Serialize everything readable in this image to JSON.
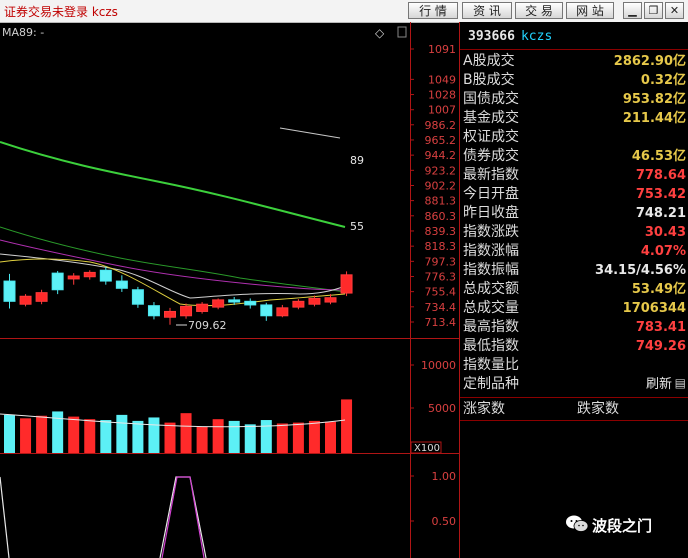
{
  "app": {
    "title": "证券交易未登录  kczs"
  },
  "toolbar": {
    "buttons": [
      "行 情",
      "资 讯",
      "交 易",
      "网 站"
    ]
  },
  "chart_labels": {
    "ma_label": "MA89: -",
    "diamond": "◇",
    "ma89_line_label": "89",
    "ma55_line_label": "55",
    "low_marker": "709.62",
    "vol_unit": "X100"
  },
  "chart_data": [
    {
      "type": "candlestick",
      "yticks": [
        "1091",
        "1049",
        "1028",
        "1007",
        "986.2",
        "965.2",
        "944.2",
        "923.2",
        "902.2",
        "881.3",
        "860.3",
        "839.3",
        "818.3",
        "797.3",
        "776.3",
        "755.4",
        "734.4",
        "713.4"
      ],
      "ylim": [
        703,
        1112
      ],
      "candles": [
        {
          "o": 770,
          "c": 742,
          "h": 780,
          "l": 732
        },
        {
          "o": 738,
          "c": 749,
          "h": 752,
          "l": 735
        },
        {
          "o": 742,
          "c": 754,
          "h": 758,
          "l": 738
        },
        {
          "o": 781,
          "c": 758,
          "h": 784,
          "l": 752
        },
        {
          "o": 773,
          "c": 777,
          "h": 781,
          "l": 765
        },
        {
          "o": 776,
          "c": 782,
          "h": 785,
          "l": 772
        },
        {
          "o": 785,
          "c": 770,
          "h": 790,
          "l": 765
        },
        {
          "o": 770,
          "c": 760,
          "h": 778,
          "l": 755
        },
        {
          "o": 758,
          "c": 738,
          "h": 762,
          "l": 733
        },
        {
          "o": 736,
          "c": 722,
          "h": 741,
          "l": 717
        },
        {
          "o": 720,
          "c": 728,
          "h": 733,
          "l": 709.62
        },
        {
          "o": 722,
          "c": 735,
          "h": 739,
          "l": 718
        },
        {
          "o": 728,
          "c": 738,
          "h": 741,
          "l": 725
        },
        {
          "o": 734,
          "c": 744,
          "h": 746,
          "l": 731
        },
        {
          "o": 744,
          "c": 741,
          "h": 748,
          "l": 737
        },
        {
          "o": 742,
          "c": 737,
          "h": 746,
          "l": 732
        },
        {
          "o": 737,
          "c": 722,
          "h": 740,
          "l": 715
        },
        {
          "o": 722,
          "c": 733,
          "h": 737,
          "l": 720
        },
        {
          "o": 734,
          "c": 742,
          "h": 745,
          "l": 731
        },
        {
          "o": 738,
          "c": 746,
          "h": 750,
          "l": 735
        },
        {
          "o": 741,
          "c": 747,
          "h": 752,
          "l": 738
        },
        {
          "o": 753.42,
          "c": 778.64,
          "h": 783.41,
          "l": 749.26
        }
      ],
      "ma_series": [
        {
          "label": "89",
          "color": "#c8c8c8",
          "points": [
            [
              0,
              1
            ],
            [
              0.6,
              1
            ],
            [
              0.66,
              936
            ],
            [
              0.75,
              924
            ]
          ]
        },
        {
          "label": "55",
          "color": "#3cd03c",
          "points": [
            [
              -0.2,
              933
            ],
            [
              0.15,
              911
            ],
            [
              0.3,
              891
            ],
            [
              0.45,
              875
            ],
            [
              0.6,
              858
            ],
            [
              0.75,
              838
            ],
            [
              0.85,
              825
            ]
          ]
        }
      ]
    },
    {
      "type": "bar",
      "series_name": "volume",
      "yticks": [
        "10000",
        "5000"
      ],
      "ylim": [
        0,
        13000
      ],
      "values": [
        4200,
        3800,
        4100,
        4600,
        4000,
        3700,
        3600,
        4200,
        3500,
        3900,
        3300,
        4400,
        2800,
        3700,
        3500,
        3100,
        3600,
        3200,
        3300,
        3500,
        3400,
        6000
      ]
    },
    {
      "type": "line",
      "yticks": [
        "1.00",
        "0.50"
      ],
      "ylim": [
        0,
        1.1
      ]
    }
  ],
  "panel": {
    "code": "393666",
    "name": "kczs",
    "rows": [
      {
        "label": "A股成交",
        "value": "2862.90亿",
        "color": "#e6c84a"
      },
      {
        "label": "B股成交",
        "value": "0.32亿",
        "color": "#e6c84a"
      },
      {
        "label": "国债成交",
        "value": "953.82亿",
        "color": "#e6c84a"
      },
      {
        "label": "基金成交",
        "value": "211.44亿",
        "color": "#e6c84a"
      },
      {
        "label": "权证成交",
        "value": "",
        "color": "#e6c84a"
      },
      {
        "label": "债券成交",
        "value": "46.53亿",
        "color": "#e6c84a"
      },
      {
        "label": "最新指数",
        "value": "778.64",
        "color": "#ff4040"
      },
      {
        "label": "今日开盘",
        "value": "753.42",
        "color": "#ff4040"
      },
      {
        "label": "昨日收盘",
        "value": "748.21",
        "color": "#e8e8e8"
      },
      {
        "label": "指数涨跌",
        "value": "30.43",
        "color": "#ff4040"
      },
      {
        "label": "指数涨幅",
        "value": "4.07%",
        "color": "#ff4040"
      },
      {
        "label": "指数振幅",
        "value": "34.15/4.56%",
        "color": "#e8e8e8"
      },
      {
        "label": "总成交额",
        "value": "53.49亿",
        "color": "#e6c84a"
      },
      {
        "label": "总成交量",
        "value": "1706344",
        "color": "#e6c84a"
      },
      {
        "label": "最高指数",
        "value": "783.41",
        "color": "#ff4040"
      },
      {
        "label": "最低指数",
        "value": "749.26",
        "color": "#ff4040"
      },
      {
        "label": "指数量比",
        "value": "",
        "color": "#e6c84a"
      },
      {
        "label": "定制品种",
        "value": "刷新",
        "color": "#e8e8e8"
      }
    ],
    "up_label": "涨家数",
    "down_label": "跌家数"
  },
  "watermark": {
    "text": "波段之门"
  }
}
